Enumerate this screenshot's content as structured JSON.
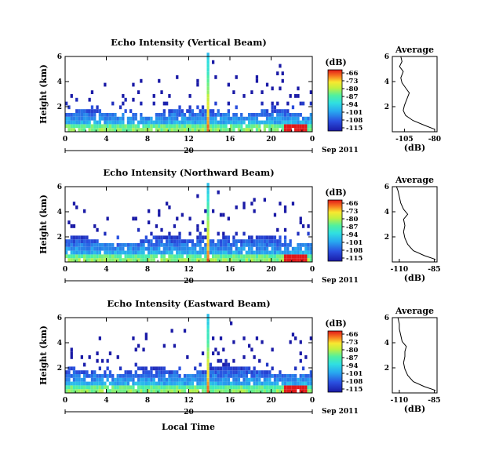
{
  "figure": {
    "x_axis_label": "Local Time",
    "date_label": "Sep 2011",
    "date_day": "20",
    "unit_label": "(dB)",
    "average_title": "Average",
    "y_axis_label": "Height (km)"
  },
  "chart_data": [
    {
      "type": "heatmap",
      "title": "Echo Intensity (Vertical Beam)",
      "ylabel": "Height (km)",
      "xlabel": "Local Time",
      "x_ticks": [
        "0",
        "4",
        "8",
        "12",
        "16",
        "20",
        "0"
      ],
      "y_ticks": [
        "2",
        "4",
        "6"
      ],
      "xlim": [
        0,
        24
      ],
      "ylim": [
        0,
        6
      ],
      "colorbar": {
        "label": "(dB)",
        "ticks": [
          "-66",
          "-73",
          "-80",
          "-87",
          "-94",
          "-101",
          "-108",
          "-115"
        ],
        "range": [
          -115,
          -66
        ]
      },
      "average_profile": {
        "title": "Average",
        "xlabel": "(dB)",
        "x_ticks": [
          "-105",
          "-80"
        ],
        "xlim": [
          -115,
          -78
        ],
        "y_ticks": [
          "2",
          "4",
          "6"
        ],
        "ylim": [
          0,
          6
        ],
        "points": [
          [
            -80,
            0.2
          ],
          [
            -88,
            0.5
          ],
          [
            -98,
            0.9
          ],
          [
            -104,
            1.3
          ],
          [
            -106,
            1.7
          ],
          [
            -105,
            2.1
          ],
          [
            -103,
            2.6
          ],
          [
            -101,
            3.1
          ],
          [
            -104,
            3.5
          ],
          [
            -107,
            3.9
          ],
          [
            -108,
            4.3
          ],
          [
            -106,
            4.8
          ],
          [
            -109,
            5.2
          ],
          [
            -107,
            5.6
          ],
          [
            -108,
            6.0
          ]
        ]
      }
    },
    {
      "type": "heatmap",
      "title": "Echo Intensity (Northward Beam)",
      "ylabel": "Height (km)",
      "xlabel": "Local Time",
      "x_ticks": [
        "0",
        "4",
        "8",
        "12",
        "16",
        "20",
        "0"
      ],
      "y_ticks": [
        "2",
        "4",
        "6"
      ],
      "xlim": [
        0,
        24
      ],
      "ylim": [
        0,
        6
      ],
      "colorbar": {
        "label": "(dB)",
        "ticks": [
          "-66",
          "-73",
          "-80",
          "-87",
          "-94",
          "-101",
          "-108",
          "-115"
        ],
        "range": [
          -115,
          -66
        ]
      },
      "average_profile": {
        "title": "Average",
        "xlabel": "(dB)",
        "x_ticks": [
          "-110",
          "-85"
        ],
        "xlim": [
          -115,
          -83
        ],
        "y_ticks": [
          "2",
          "4",
          "6"
        ],
        "ylim": [
          0,
          6
        ],
        "points": [
          [
            -84,
            0.2
          ],
          [
            -92,
            0.5
          ],
          [
            -100,
            0.9
          ],
          [
            -104,
            1.4
          ],
          [
            -106,
            1.9
          ],
          [
            -107,
            2.4
          ],
          [
            -106,
            2.9
          ],
          [
            -107,
            3.4
          ],
          [
            -104,
            3.8
          ],
          [
            -107,
            4.2
          ],
          [
            -109,
            4.7
          ],
          [
            -110,
            5.2
          ],
          [
            -111,
            5.7
          ],
          [
            -112,
            6.0
          ]
        ]
      }
    },
    {
      "type": "heatmap",
      "title": "Echo Intensity (Eastward Beam)",
      "ylabel": "Height (km)",
      "xlabel": "Local Time",
      "x_ticks": [
        "0",
        "4",
        "8",
        "12",
        "16",
        "20",
        "0"
      ],
      "y_ticks": [
        "2",
        "4",
        "6"
      ],
      "xlim": [
        0,
        24
      ],
      "ylim": [
        0,
        6
      ],
      "colorbar": {
        "label": "(dB)",
        "ticks": [
          "-66",
          "-73",
          "-80",
          "-87",
          "-94",
          "-101",
          "-108",
          "-115"
        ],
        "range": [
          -115,
          -66
        ]
      },
      "average_profile": {
        "title": "Average",
        "xlabel": "(dB)",
        "x_ticks": [
          "-110",
          "-85"
        ],
        "xlim": [
          -115,
          -83
        ],
        "y_ticks": [
          "2",
          "4",
          "6"
        ],
        "ylim": [
          0,
          6
        ],
        "points": [
          [
            -84,
            0.2
          ],
          [
            -92,
            0.5
          ],
          [
            -100,
            0.9
          ],
          [
            -104,
            1.4
          ],
          [
            -106,
            1.9
          ],
          [
            -107,
            2.4
          ],
          [
            -106,
            2.9
          ],
          [
            -106,
            3.3
          ],
          [
            -105,
            3.7
          ],
          [
            -108,
            4.1
          ],
          [
            -109,
            4.6
          ],
          [
            -110,
            5.1
          ],
          [
            -110,
            5.5
          ],
          [
            -111,
            6.0
          ]
        ]
      }
    }
  ]
}
